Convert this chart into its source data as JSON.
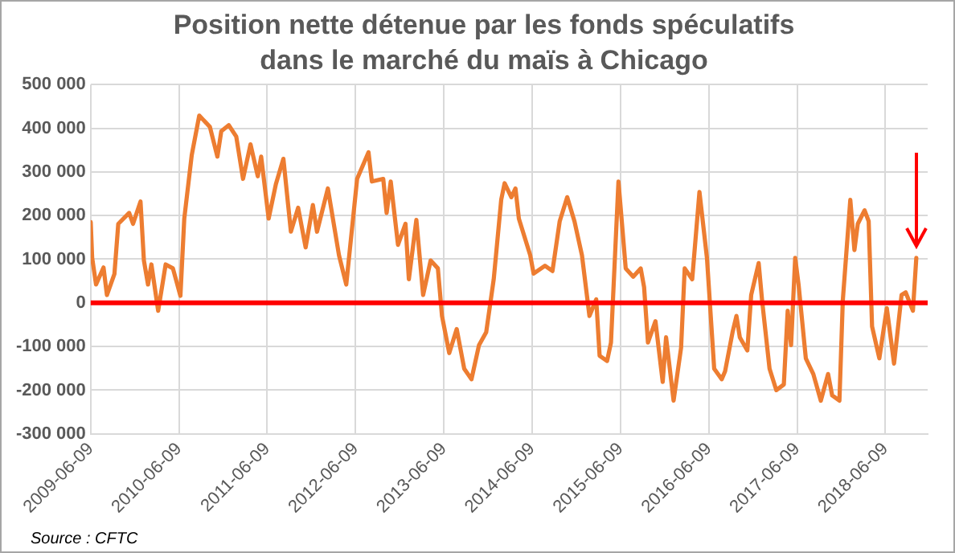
{
  "chart_data": {
    "type": "line",
    "title": "Position nette détenue par les fonds spéculatifs dans le marché du maïs à Chicago",
    "x": [
      "2009-06-09",
      "2009-06-15",
      "2009-07-01",
      "2009-08-01",
      "2009-08-15",
      "2009-09-15",
      "2009-10-01",
      "2009-11-15",
      "2009-12-01",
      "2010-01-01",
      "2010-01-15",
      "2010-02-01",
      "2010-02-15",
      "2010-03-15",
      "2010-04-15",
      "2010-05-15",
      "2010-06-15",
      "2010-07-01",
      "2010-08-01",
      "2010-09-01",
      "2010-10-15",
      "2010-11-15",
      "2010-12-01",
      "2011-01-01",
      "2011-02-01",
      "2011-03-01",
      "2011-04-01",
      "2011-05-01",
      "2011-05-15",
      "2011-06-15",
      "2011-07-15",
      "2011-08-15",
      "2011-09-15",
      "2011-10-15",
      "2011-11-15",
      "2011-12-15",
      "2012-01-01",
      "2012-02-15",
      "2012-04-01",
      "2012-05-01",
      "2012-06-15",
      "2012-08-01",
      "2012-08-15",
      "2012-10-01",
      "2012-10-15",
      "2012-11-01",
      "2012-12-01",
      "2013-01-01",
      "2013-01-15",
      "2013-02-15",
      "2013-03-15",
      "2013-04-15",
      "2013-05-15",
      "2013-06-01",
      "2013-07-01",
      "2013-08-01",
      "2013-09-01",
      "2013-10-01",
      "2013-11-01",
      "2013-12-01",
      "2014-01-01",
      "2014-02-01",
      "2014-02-15",
      "2014-03-15",
      "2014-04-01",
      "2014-04-15",
      "2014-06-01",
      "2014-06-15",
      "2014-08-01",
      "2014-09-01",
      "2014-10-01",
      "2014-11-01",
      "2014-12-01",
      "2015-01-01",
      "2015-02-01",
      "2015-03-01",
      "2015-03-15",
      "2015-04-15",
      "2015-05-01",
      "2015-06-01",
      "2015-07-01",
      "2015-08-01",
      "2015-09-01",
      "2015-09-15",
      "2015-10-01",
      "2015-11-01",
      "2015-12-01",
      "2015-12-15",
      "2016-01-15",
      "2016-02-15",
      "2016-03-01",
      "2016-04-01",
      "2016-05-01",
      "2016-06-01",
      "2016-07-01",
      "2016-08-01",
      "2016-08-15",
      "2016-09-15",
      "2016-10-01",
      "2016-10-15",
      "2016-11-15",
      "2016-12-01",
      "2017-01-01",
      "2017-01-15",
      "2017-02-15",
      "2017-03-15",
      "2017-04-15",
      "2017-05-01",
      "2017-05-15",
      "2017-06-01",
      "2017-06-15",
      "2017-07-15",
      "2017-08-15",
      "2017-09-15",
      "2017-10-15",
      "2017-11-01",
      "2017-12-01",
      "2017-12-15",
      "2018-01-15",
      "2018-02-01",
      "2018-02-15",
      "2018-03-15",
      "2018-04-01",
      "2018-04-15",
      "2018-05-15",
      "2018-06-15",
      "2018-07-15",
      "2018-08-15",
      "2018-09-01",
      "2018-10-01",
      "2018-10-15"
    ],
    "series": [
      {
        "color": "#ed7d31",
        "values": [
          185000,
          103000,
          42000,
          81000,
          18000,
          66000,
          181000,
          206000,
          181000,
          232000,
          97000,
          42000,
          88000,
          -18000,
          88000,
          79000,
          16000,
          193000,
          339000,
          429000,
          403000,
          335000,
          393000,
          407000,
          381000,
          284000,
          363000,
          290000,
          335000,
          193000,
          272000,
          330000,
          163000,
          218000,
          127000,
          224000,
          163000,
          262000,
          109000,
          42000,
          284000,
          345000,
          278000,
          284000,
          206000,
          278000,
          133000,
          181000,
          54000,
          190000,
          18000,
          97000,
          79000,
          -30000,
          -115000,
          -60000,
          -151000,
          -175000,
          -97000,
          -67000,
          54000,
          236000,
          274000,
          242000,
          262000,
          193000,
          109000,
          67000,
          85000,
          73000,
          187000,
          242000,
          187000,
          109000,
          -30000,
          8000,
          -121000,
          -133000,
          -91000,
          278000,
          79000,
          60000,
          79000,
          36000,
          -91000,
          -42000,
          -181000,
          -79000,
          -224000,
          -103000,
          79000,
          54000,
          254000,
          103000,
          -151000,
          -175000,
          -157000,
          -67000,
          -30000,
          -79000,
          -109000,
          18000,
          91000,
          6000,
          -151000,
          -200000,
          -187000,
          -18000,
          -97000,
          103000,
          42000,
          -127000,
          -163000,
          -224000,
          -163000,
          -212000,
          -224000,
          6000,
          236000,
          121000,
          181000,
          212000,
          187000,
          -54000,
          -127000,
          -12000,
          -139000,
          18000,
          24000,
          -18000,
          103000
        ]
      }
    ],
    "xlim": [
      "2009-06-09",
      "2018-12-01"
    ],
    "xticks": [
      "2009-06-09",
      "2010-06-09",
      "2011-06-09",
      "2012-06-09",
      "2013-06-09",
      "2014-06-09",
      "2015-06-09",
      "2016-06-09",
      "2017-06-09",
      "2018-06-09"
    ],
    "ylim": [
      -300000,
      500000
    ],
    "yticks": [
      {
        "value": -300000,
        "label": "-300 000"
      },
      {
        "value": -200000,
        "label": "-200 000"
      },
      {
        "value": -100000,
        "label": "-100 000"
      },
      {
        "value": 0,
        "label": "0"
      },
      {
        "value": 100000,
        "label": "100 000"
      },
      {
        "value": 200000,
        "label": "200 000"
      },
      {
        "value": 300000,
        "label": "300 000"
      },
      {
        "value": 400000,
        "label": "400 000"
      },
      {
        "value": 500000,
        "label": "500 000"
      }
    ],
    "ref_lines": [
      {
        "axis": "y",
        "value": 0,
        "color": "#ff0000"
      }
    ],
    "annotations": [
      "Source : CFTC"
    ],
    "grid": true,
    "legend": false,
    "marker": "none",
    "line_style": "solid"
  }
}
